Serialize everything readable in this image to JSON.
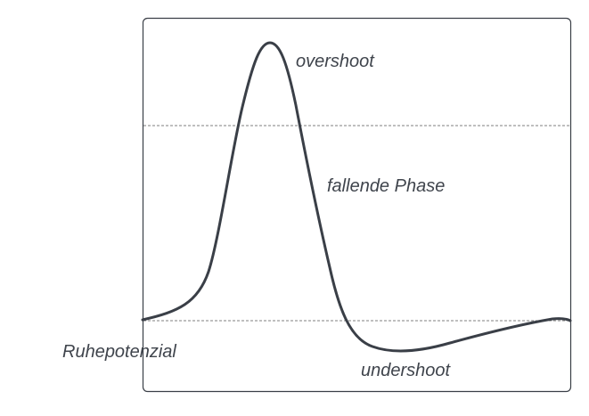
{
  "labels": {
    "overshoot": "overshoot",
    "falling_phase": "fallende Phase",
    "resting_potential": "Ruhepotenzial",
    "undershoot": "undershoot"
  },
  "colors": {
    "curve": "#3a3f47",
    "frame": "#3a3f47",
    "dashed_line": "#7f7f7f",
    "label_text": "#3f444c",
    "background": "#ffffff"
  }
}
